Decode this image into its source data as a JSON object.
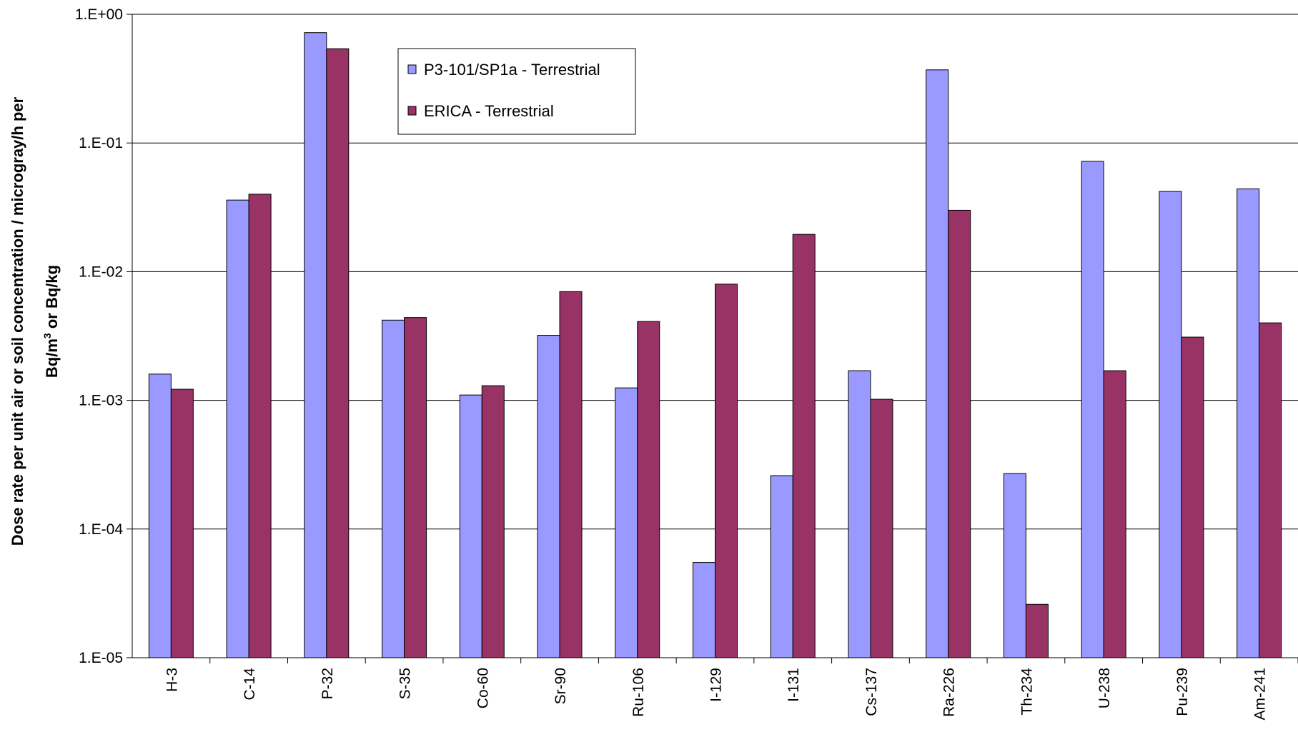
{
  "chart_data": {
    "type": "bar",
    "title": "",
    "xlabel": "",
    "ylabel": {
      "line1": "Dose rate per unit air or soil concentration / microgray/h per",
      "line2_prefix": "Bq/m",
      "line2_sup": "3",
      "line2_suffix": " or Bq/kg"
    },
    "yscale": "log",
    "ylim": [
      1e-05,
      1
    ],
    "y_ticks": [
      {
        "value": 1,
        "label": "1.E+00"
      },
      {
        "value": 0.1,
        "label": "1.E-01"
      },
      {
        "value": 0.01,
        "label": "1.E-02"
      },
      {
        "value": 0.001,
        "label": "1.E-03"
      },
      {
        "value": 0.0001,
        "label": "1.E-04"
      },
      {
        "value": 1e-05,
        "label": "1.E-05"
      }
    ],
    "grid": true,
    "legend_position": "top-center",
    "categories": [
      "H-3",
      "C-14",
      "P-32",
      "S-35",
      "Co-60",
      "Sr-90",
      "Ru-106",
      "I-129",
      "I-131",
      "Cs-137",
      "Ra-226",
      "Th-234",
      "U-238",
      "Pu-239",
      "Am-241"
    ],
    "series": [
      {
        "name": "P3-101/SP1a - Terrestrial",
        "color": "#9999FF",
        "values": [
          0.0016,
          0.036,
          0.72,
          0.0042,
          0.0011,
          0.0032,
          0.00125,
          5.5e-05,
          0.00026,
          0.0017,
          0.37,
          0.00027,
          0.072,
          0.042,
          0.044
        ]
      },
      {
        "name": "ERICA - Terrestrial",
        "color": "#993366",
        "values": [
          0.00122,
          0.04,
          0.54,
          0.0044,
          0.0013,
          0.007,
          0.0041,
          0.008,
          0.0195,
          0.00102,
          0.03,
          2.6e-05,
          0.0017,
          0.0031,
          0.004
        ]
      }
    ]
  }
}
